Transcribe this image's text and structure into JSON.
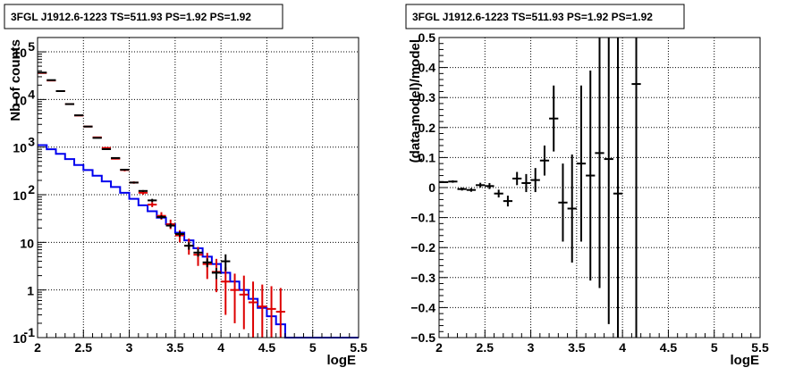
{
  "chart_data": [
    {
      "type": "line",
      "title": "3FGL J1912.6-1223 TS=511.93 PS=1.92 PS=1.92",
      "xlabel": "logE",
      "ylabel": "Nb of counts",
      "xlim": [
        2,
        5.5
      ],
      "ylim": [
        0.1,
        200000
      ],
      "yscale": "log",
      "grid": true,
      "x_ticks": [
        "2",
        "2.5",
        "3",
        "3.5",
        "4",
        "4.5",
        "5",
        "5.5"
      ],
      "y_ticks": [
        {
          "value": 0.1,
          "base": "10",
          "exp": "-1"
        },
        {
          "value": 1,
          "base": "1",
          "exp": ""
        },
        {
          "value": 10,
          "base": "10",
          "exp": ""
        },
        {
          "value": 100,
          "base": "10",
          "exp": "2"
        },
        {
          "value": 1000,
          "base": "10",
          "exp": "3"
        },
        {
          "value": 10000,
          "base": "10",
          "exp": "4"
        },
        {
          "value": 100000,
          "base": "10",
          "exp": "5"
        }
      ],
      "bin_width": 0.1,
      "series": [
        {
          "kind": "step",
          "color": "#0000ee",
          "bin_edges": [
            2.0,
            2.1,
            2.2,
            2.3,
            2.4,
            2.5,
            2.6,
            2.7,
            2.8,
            2.9,
            3.0,
            3.1,
            3.2,
            3.3,
            3.4,
            3.5,
            3.6,
            3.7,
            3.8,
            3.9,
            4.0,
            4.1,
            4.2,
            4.3,
            4.4,
            4.5,
            4.6,
            4.7,
            4.8,
            4.9,
            5.0,
            5.1,
            5.2,
            5.3,
            5.4,
            5.5
          ],
          "values": [
            1100,
            900,
            720,
            560,
            420,
            330,
            250,
            190,
            145,
            110,
            82,
            60,
            45,
            33,
            24,
            16,
            11,
            7.5,
            5,
            3.5,
            2.3,
            1.5,
            1,
            0.65,
            0.42,
            0.28,
            0.19,
            0.1,
            0.1,
            0.1,
            0.1,
            0.1,
            0.1,
            0.1,
            0.1
          ]
        },
        {
          "kind": "errorbars",
          "color": "#dd0000",
          "x": [
            2.05,
            2.15,
            2.25,
            2.35,
            2.45,
            2.55,
            2.65,
            2.75,
            2.85,
            2.95,
            3.05,
            3.15,
            3.25,
            3.35,
            3.45,
            3.55,
            3.65,
            3.75,
            3.85,
            3.95,
            4.05,
            4.15,
            4.25,
            4.35,
            4.45,
            4.55,
            4.65
          ],
          "y": [
            36000,
            25000,
            15000,
            8000,
            4600,
            2700,
            1600,
            960,
            570,
            330,
            180,
            110,
            62,
            36,
            24,
            14,
            8.5,
            5.5,
            3.5,
            2.4,
            1.5,
            1.0,
            0.8,
            0.55,
            0.45,
            0.4,
            0.35
          ],
          "y_low": [
            35400,
            24600,
            14800,
            7900,
            4530,
            2650,
            1560,
            930,
            550,
            310,
            170,
            100,
            55,
            30,
            19,
            10,
            5.5,
            3.2,
            1.7,
            0.9,
            0.3,
            0.2,
            0.15,
            0.1,
            0.1,
            0.1,
            0.1
          ],
          "y_high": [
            36600,
            25400,
            15200,
            8100,
            4670,
            2750,
            1640,
            990,
            590,
            350,
            190,
            120,
            70,
            43,
            30,
            18,
            12,
            8,
            6,
            4.5,
            3,
            2.2,
            2,
            1.5,
            1.3,
            1.2,
            1.1
          ]
        },
        {
          "kind": "errorbars",
          "color": "#000000",
          "x": [
            2.05,
            2.15,
            2.25,
            2.35,
            2.45,
            2.55,
            2.65,
            2.75,
            2.85,
            2.95,
            3.05,
            3.15,
            3.25,
            3.35,
            3.45,
            3.55,
            3.65,
            3.75,
            3.85,
            3.95,
            4.05
          ],
          "y": [
            36700,
            25500,
            15000,
            8000,
            4650,
            2700,
            1560,
            905,
            590,
            335,
            180,
            120,
            76,
            34,
            22.5,
            15,
            8.5,
            6.1,
            3.8,
            2.3,
            4.0
          ],
          "y_low": [
            36500,
            25300,
            14900,
            7950,
            4600,
            2680,
            1540,
            890,
            580,
            325,
            175,
            115,
            70,
            31,
            20,
            13,
            7,
            5,
            3,
            1.7,
            2.5
          ],
          "y_high": [
            36900,
            25700,
            15100,
            8050,
            4700,
            2720,
            1580,
            920,
            600,
            345,
            185,
            125,
            82,
            37,
            25,
            17,
            10,
            7.2,
            4.6,
            2.9,
            5.6
          ]
        }
      ]
    },
    {
      "type": "scatter",
      "title": "3FGL J1912.6-1223 TS=511.93 PS=1.92 PS=1.92",
      "xlabel": "logE",
      "ylabel": "(data-model)/model",
      "xlim": [
        2,
        5.5
      ],
      "ylim": [
        -0.5,
        0.5
      ],
      "grid": true,
      "x_ticks": [
        "2",
        "2.5",
        "3",
        "3.5",
        "4",
        "4.5",
        "5",
        "5.5"
      ],
      "y_ticks": [
        "−0.5",
        "−0.4",
        "−0.3",
        "−0.2",
        "−0.1",
        "0",
        "0.1",
        "0.2",
        "0.3",
        "0.4",
        "0.5"
      ],
      "bin_width": 0.1,
      "series": [
        {
          "kind": "errorbars",
          "color": "#000000",
          "x": [
            2.05,
            2.15,
            2.25,
            2.35,
            2.45,
            2.55,
            2.65,
            2.75,
            2.85,
            2.95,
            3.05,
            3.15,
            3.25,
            3.35,
            3.45,
            3.55,
            3.65,
            3.75,
            3.85,
            3.95,
            4.15
          ],
          "y": [
            0.018,
            0.02,
            -0.005,
            -0.008,
            0.008,
            0.005,
            -0.02,
            -0.045,
            0.03,
            0.015,
            0.025,
            0.09,
            0.23,
            -0.05,
            -0.07,
            0.08,
            0.04,
            0.115,
            0.095,
            -0.02,
            0.345
          ],
          "y_err": [
            0.003,
            0.004,
            0.005,
            0.006,
            0.008,
            0.01,
            0.013,
            0.018,
            0.022,
            0.03,
            0.04,
            0.05,
            0.11,
            0.13,
            0.18,
            0.26,
            0.35,
            0.45,
            0.55,
            0.55,
            0.9
          ]
        }
      ]
    }
  ]
}
